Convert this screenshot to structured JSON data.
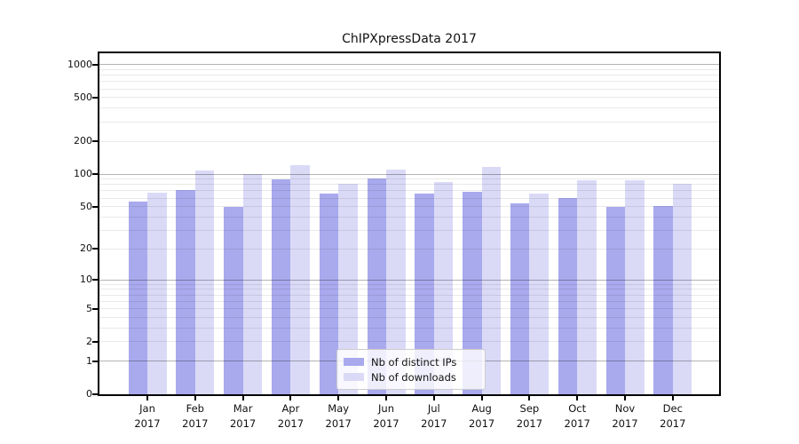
{
  "chart_data": {
    "type": "bar",
    "title": "ChIPXpressData 2017",
    "y_scale": "log1p",
    "ylim": [
      0,
      1270
    ],
    "grid": true,
    "legend_position": "lower center",
    "categories": [
      {
        "month": "Jan",
        "year": "2017"
      },
      {
        "month": "Feb",
        "year": "2017"
      },
      {
        "month": "Mar",
        "year": "2017"
      },
      {
        "month": "Apr",
        "year": "2017"
      },
      {
        "month": "May",
        "year": "2017"
      },
      {
        "month": "Jun",
        "year": "2017"
      },
      {
        "month": "Jul",
        "year": "2017"
      },
      {
        "month": "Aug",
        "year": "2017"
      },
      {
        "month": "Sep",
        "year": "2017"
      },
      {
        "month": "Oct",
        "year": "2017"
      },
      {
        "month": "Nov",
        "year": "2017"
      },
      {
        "month": "Dec",
        "year": "2017"
      }
    ],
    "series": [
      {
        "name": "Nb of distinct IPs",
        "color": "#a9a9ee",
        "values": [
          56,
          71,
          50,
          90,
          66,
          91,
          66,
          68,
          54,
          60,
          50,
          51
        ]
      },
      {
        "name": "Nb of downloads",
        "color": "#dadaf7",
        "values": [
          67,
          108,
          100,
          120,
          82,
          110,
          84,
          117,
          66,
          87,
          88,
          82
        ]
      }
    ],
    "y_ticks": [
      {
        "value": 0,
        "label": "0"
      },
      {
        "value": 1,
        "label": "1"
      },
      {
        "value": 2,
        "label": "2"
      },
      {
        "value": 5,
        "label": "5"
      },
      {
        "value": 10,
        "label": "10"
      },
      {
        "value": 20,
        "label": "20"
      },
      {
        "value": 50,
        "label": "50"
      },
      {
        "value": 100,
        "label": "100"
      },
      {
        "value": 200,
        "label": "200"
      },
      {
        "value": 500,
        "label": "500"
      },
      {
        "value": 1000,
        "label": "1000"
      }
    ],
    "y_major_gridlines": [
      1,
      10,
      100,
      1000
    ],
    "y_minor_gridlines": [
      2,
      3,
      4,
      5,
      6,
      7,
      8,
      9,
      20,
      30,
      40,
      50,
      60,
      70,
      80,
      90,
      200,
      300,
      400,
      500,
      600,
      700,
      800,
      900
    ]
  },
  "colors": {
    "major_grid": "#b3b3b3",
    "minor_grid": "#e9e9e9",
    "spine": "#000000",
    "legend_border": "#cccccc"
  }
}
